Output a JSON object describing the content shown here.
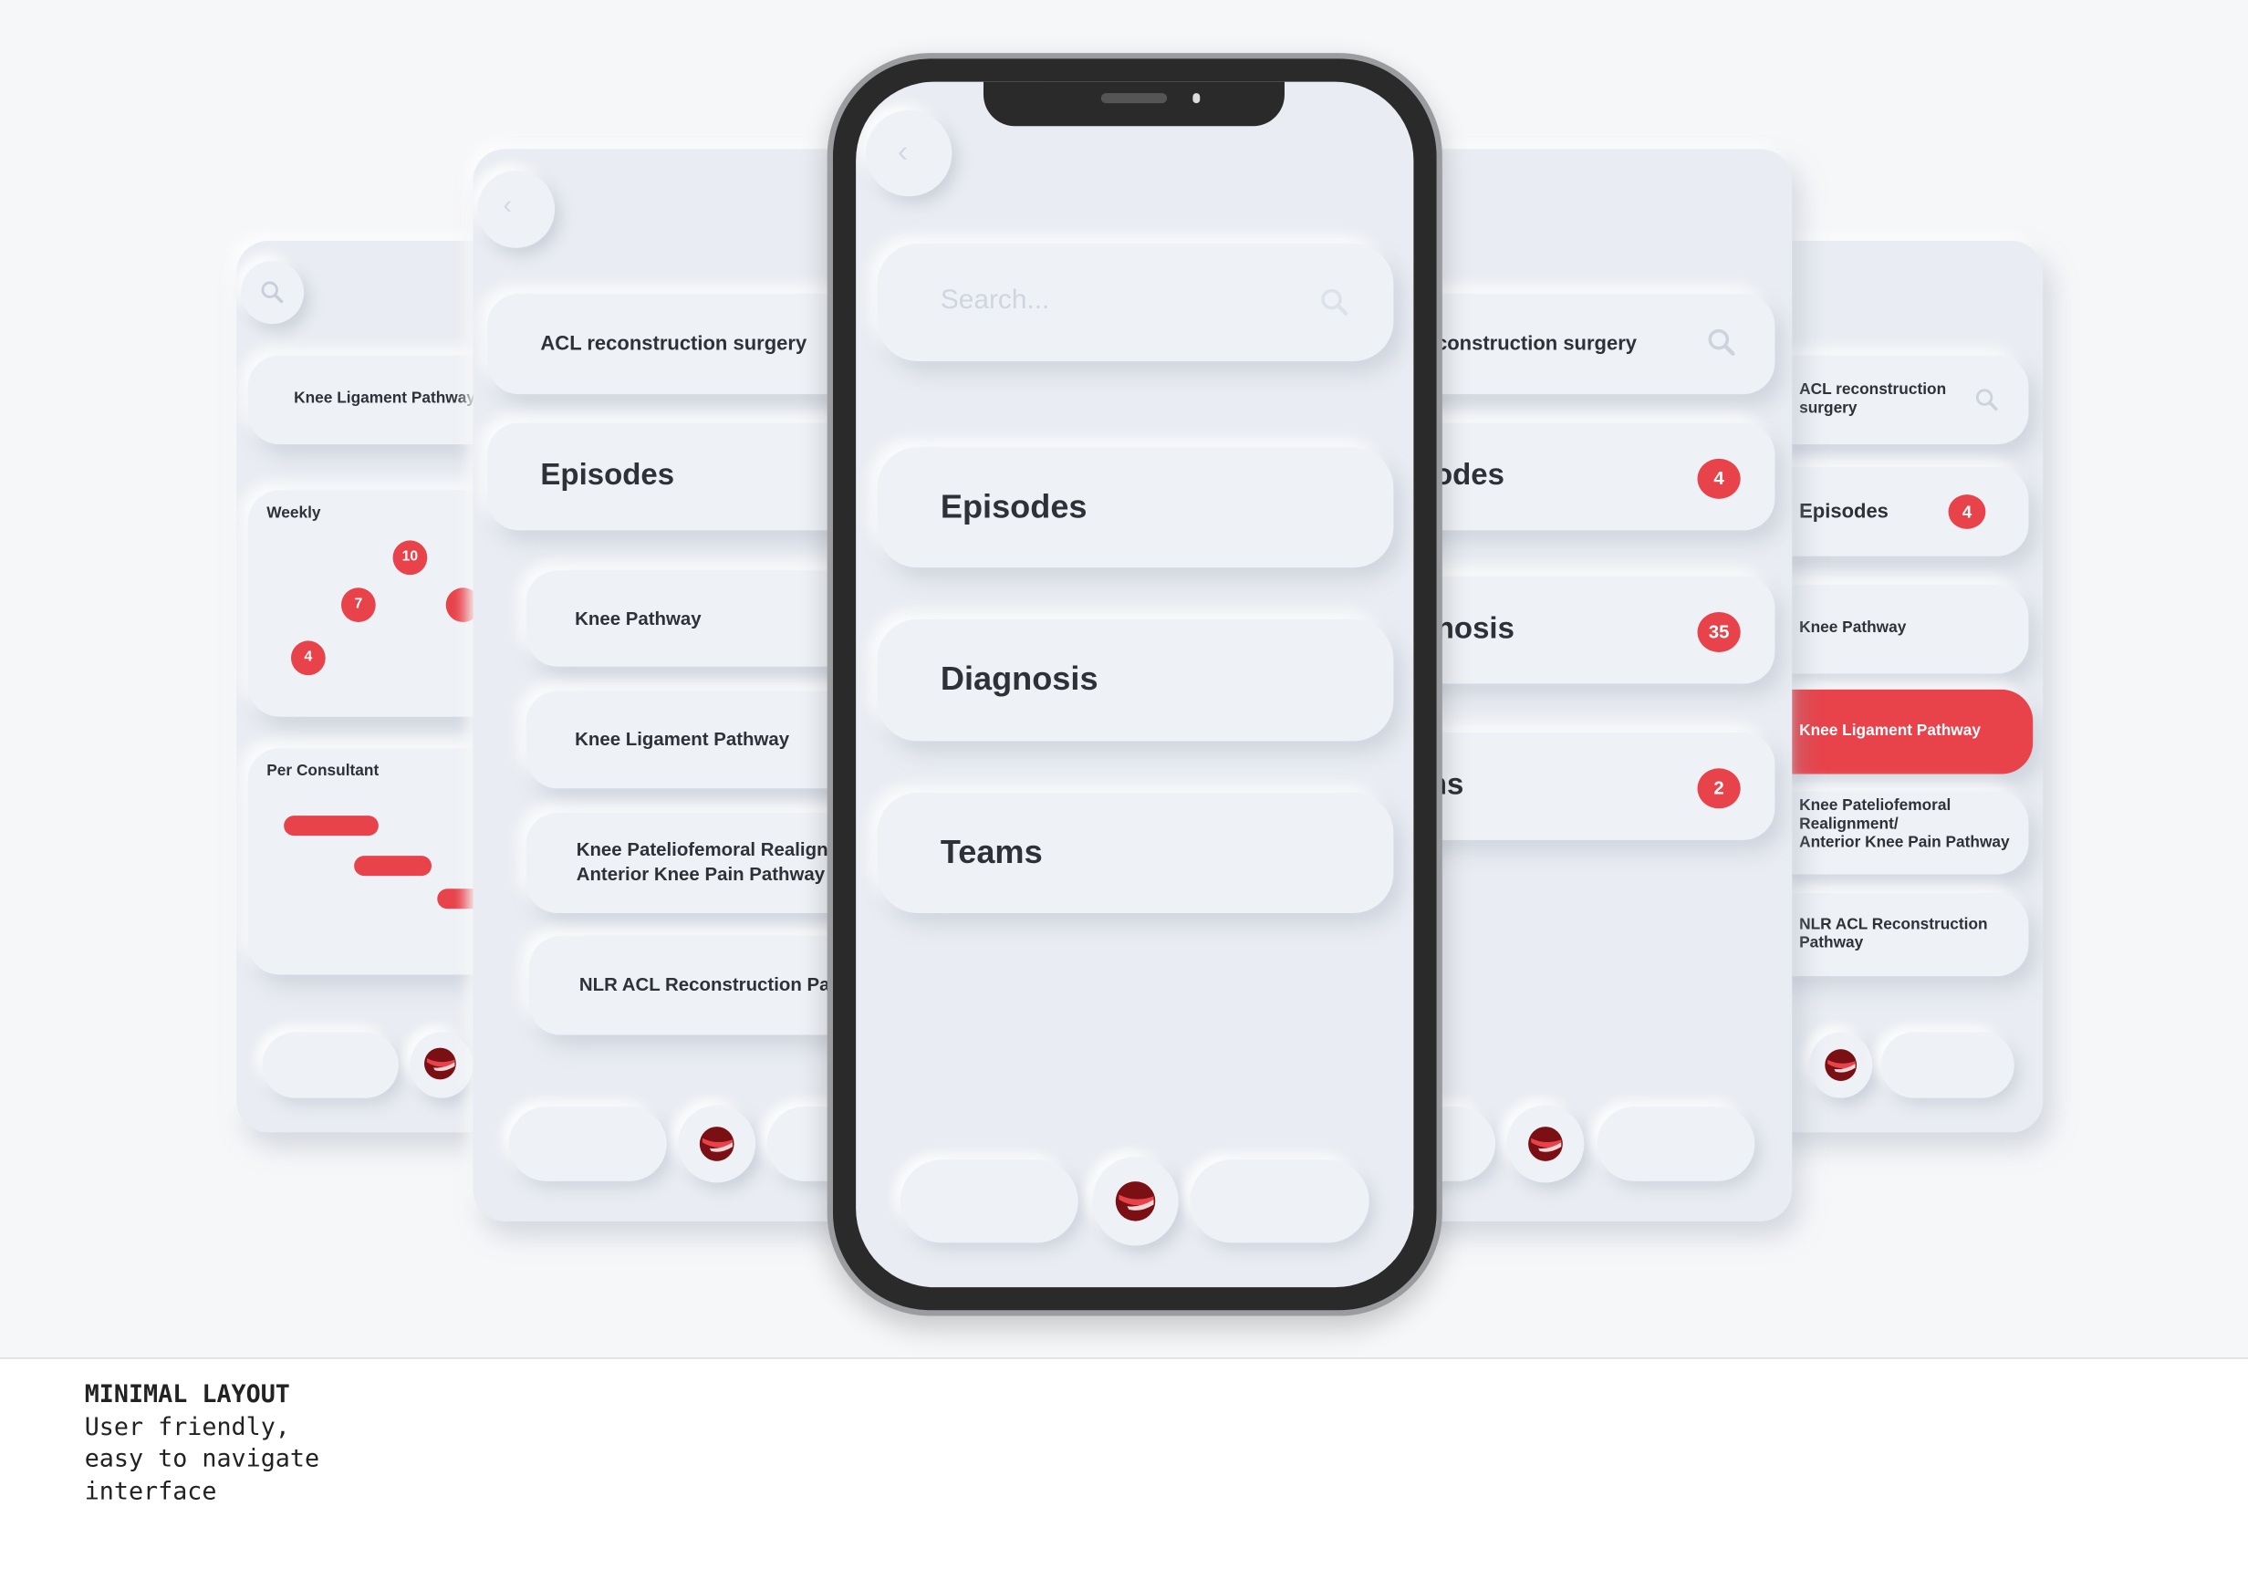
{
  "phone": {
    "search_placeholder": "Search...",
    "menu": [
      {
        "label": "Episodes"
      },
      {
        "label": "Diagnosis"
      },
      {
        "label": "Teams"
      }
    ]
  },
  "left_card": {
    "search_value": "ACL reconstruction surgery",
    "section": "Episodes",
    "items": [
      {
        "label": "Knee Pathway"
      },
      {
        "label": "Knee Ligament Pathway"
      },
      {
        "label": "Knee Pateliofemoral Realignment/"
      },
      {
        "label": "NLR ACL Reconstruction Pathway"
      }
    ],
    "item3_line2": "Anterior Knee Pain Pathway"
  },
  "right_card": {
    "search_value": "ACL reconstruction surgery",
    "menu": [
      {
        "label": "Episodes",
        "badge": "4"
      },
      {
        "label": "Diagnosis",
        "badge": "35"
      },
      {
        "label": "Teams",
        "badge": "2"
      }
    ]
  },
  "far_left_card": {
    "title": "Knee Ligament Pathway",
    "weekly_label": "Weekly",
    "weekly_badges": [
      "10",
      "7",
      "4"
    ],
    "consultant_label": "Per Consultant"
  },
  "far_right_card": {
    "search_value": "ACL reconstruction surgery",
    "section": "Episodes",
    "section_badge": "4",
    "items": [
      {
        "label": "Knee Pathway"
      },
      {
        "label": "Knee Ligament Pathway",
        "selected": true
      },
      {
        "label": "Knee Pateliofemoral Realignment/"
      },
      {
        "label": "NLR ACL Reconstruction Pathway"
      }
    ],
    "item3_line2": "Anterior Knee Pain Pathway"
  },
  "caption": {
    "title": "MINIMAL LAYOUT",
    "lines": [
      "User friendly,",
      "easy to navigate",
      "interface"
    ]
  },
  "colors": {
    "accent": "#e8424a",
    "surface": "#e9ecf2",
    "text": "#2f3138"
  }
}
